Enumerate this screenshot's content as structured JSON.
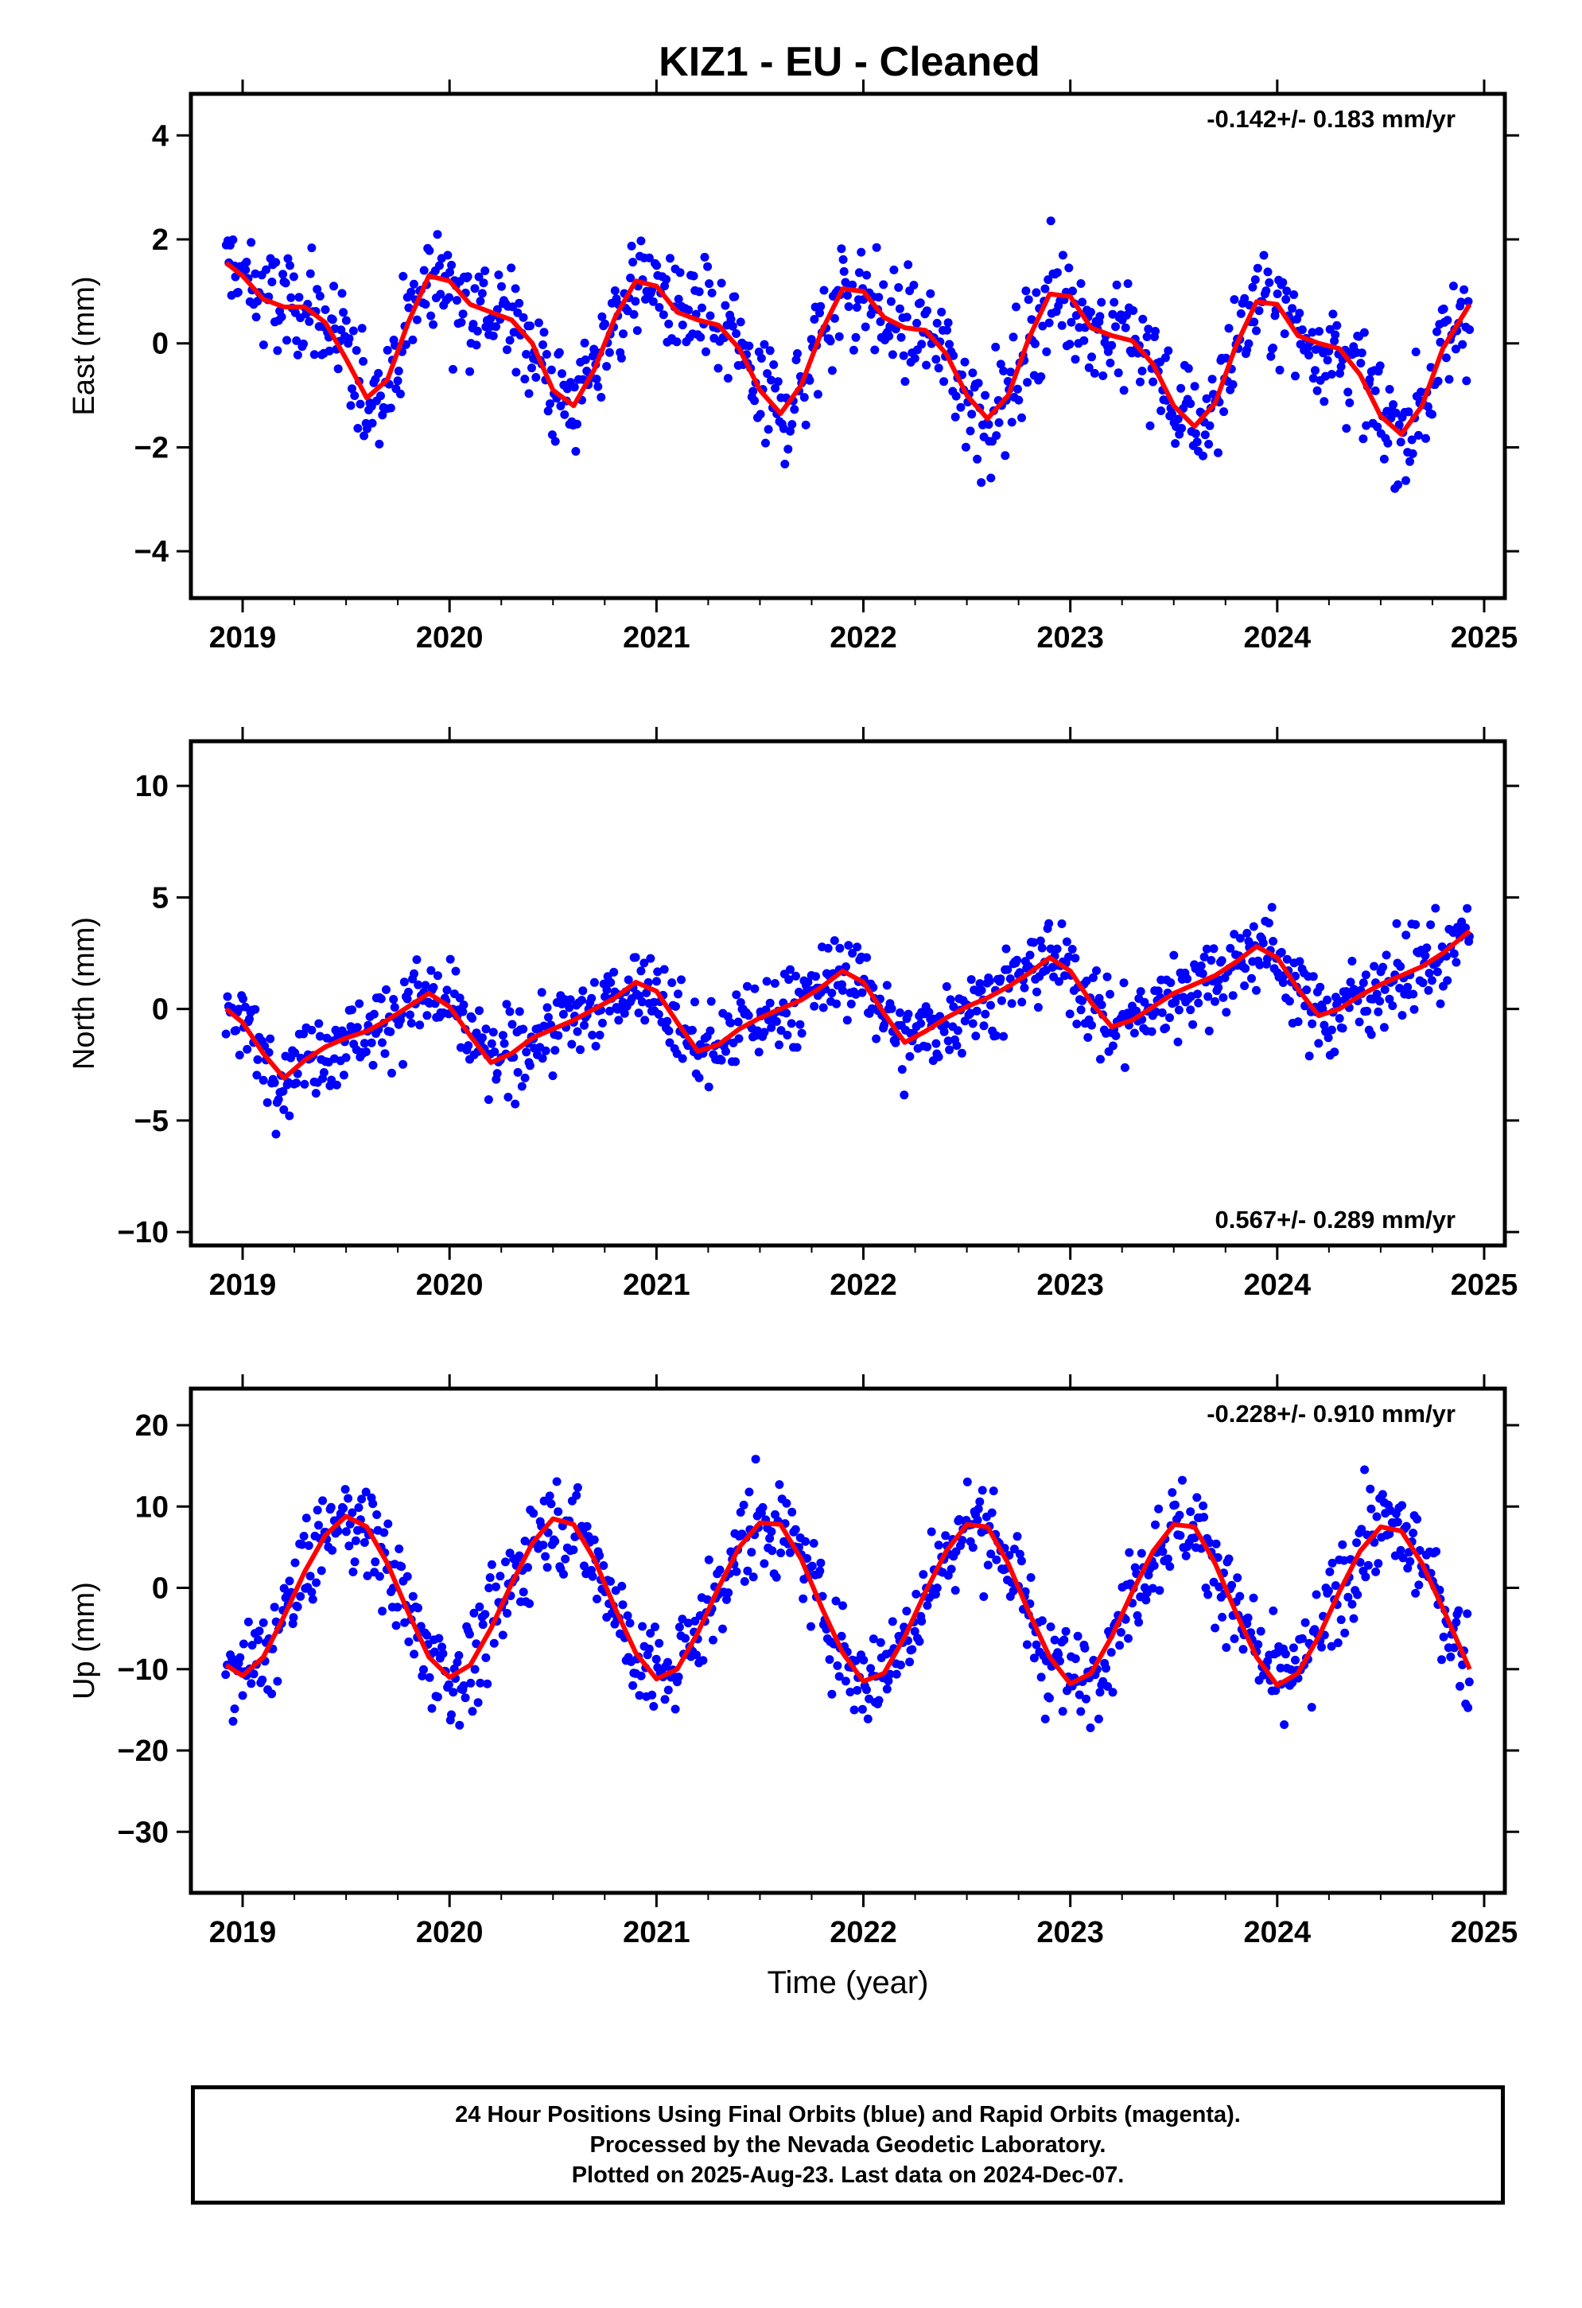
{
  "title": "KIZ1  - EU - Cleaned",
  "colors": {
    "points": "#0000ff",
    "fit": "#ff0000",
    "frame": "#000000"
  },
  "chart_data": [
    {
      "type": "scatter",
      "name": "east",
      "ylabel": "East (mm)",
      "xlabel": "",
      "xlim": [
        2018.75,
        2025.1
      ],
      "ylim": [
        -4.9,
        4.8
      ],
      "xticks": [
        2019,
        2020,
        2021,
        2022,
        2023,
        2024,
        2025
      ],
      "yticks": [
        -4,
        -2,
        0,
        2,
        4
      ],
      "rate_label": "-0.142+/- 0.183 mm/yr",
      "rate_position": "top-right",
      "fit": {
        "x": [
          2018.92,
          2019.0,
          2019.1,
          2019.2,
          2019.3,
          2019.4,
          2019.5,
          2019.6,
          2019.7,
          2019.8,
          2019.9,
          2020.0,
          2020.1,
          2020.2,
          2020.3,
          2020.4,
          2020.5,
          2020.6,
          2020.7,
          2020.8,
          2020.9,
          2021.0,
          2021.1,
          2021.2,
          2021.3,
          2021.4,
          2021.5,
          2021.6,
          2021.7,
          2021.8,
          2021.9,
          2022.0,
          2022.1,
          2022.2,
          2022.3,
          2022.4,
          2022.5,
          2022.6,
          2022.7,
          2022.8,
          2022.9,
          2023.0,
          2023.1,
          2023.2,
          2023.3,
          2023.4,
          2023.5,
          2023.6,
          2023.7,
          2023.8,
          2023.9,
          2024.0,
          2024.1,
          2024.2,
          2024.3,
          2024.4,
          2024.5,
          2024.6,
          2024.7,
          2024.8,
          2024.93
        ],
        "y": [
          1.55,
          1.3,
          0.85,
          0.7,
          0.7,
          0.4,
          -0.3,
          -1.05,
          -0.7,
          0.4,
          1.3,
          1.2,
          0.75,
          0.6,
          0.45,
          0.0,
          -0.9,
          -1.2,
          -0.5,
          0.5,
          1.2,
          1.1,
          0.6,
          0.45,
          0.35,
          -0.1,
          -0.9,
          -1.35,
          -0.8,
          0.25,
          1.05,
          1.0,
          0.5,
          0.3,
          0.25,
          -0.2,
          -1.0,
          -1.45,
          -1.0,
          0.1,
          0.95,
          0.9,
          0.3,
          0.15,
          0.05,
          -0.4,
          -1.2,
          -1.6,
          -1.15,
          -0.05,
          0.8,
          0.75,
          0.15,
          0.0,
          -0.1,
          -0.6,
          -1.4,
          -1.75,
          -1.2,
          -0.1,
          0.75
        ]
      }
    },
    {
      "type": "scatter",
      "name": "north",
      "ylabel": "North (mm)",
      "xlabel": "",
      "xlim": [
        2018.75,
        2025.1
      ],
      "ylim": [
        -10.6,
        12.0
      ],
      "xticks": [
        2019,
        2020,
        2021,
        2022,
        2023,
        2024,
        2025
      ],
      "yticks": [
        -10,
        -5,
        0,
        5,
        10
      ],
      "rate_label": "0.567+/- 0.289 mm/yr",
      "rate_position": "bottom-right",
      "fit": {
        "x": [
          2018.92,
          2019.0,
          2019.1,
          2019.2,
          2019.3,
          2019.4,
          2019.5,
          2019.6,
          2019.7,
          2019.8,
          2019.9,
          2020.0,
          2020.1,
          2020.2,
          2020.3,
          2020.4,
          2020.5,
          2020.6,
          2020.7,
          2020.8,
          2020.9,
          2021.0,
          2021.1,
          2021.2,
          2021.3,
          2021.4,
          2021.5,
          2021.6,
          2021.7,
          2021.8,
          2021.9,
          2022.0,
          2022.1,
          2022.2,
          2022.3,
          2022.4,
          2022.5,
          2022.6,
          2022.7,
          2022.8,
          2022.9,
          2023.0,
          2023.1,
          2023.2,
          2023.3,
          2023.4,
          2023.5,
          2023.6,
          2023.7,
          2023.8,
          2023.9,
          2024.0,
          2024.1,
          2024.2,
          2024.3,
          2024.4,
          2024.5,
          2024.6,
          2024.7,
          2024.8,
          2024.93
        ],
        "y": [
          0.0,
          -0.6,
          -2.0,
          -3.1,
          -2.3,
          -1.7,
          -1.3,
          -1.0,
          -0.5,
          0.1,
          0.7,
          0.1,
          -1.2,
          -2.4,
          -2.0,
          -1.3,
          -0.9,
          -0.5,
          0.0,
          0.5,
          1.2,
          0.8,
          -0.6,
          -1.9,
          -1.6,
          -0.9,
          -0.4,
          0.0,
          0.4,
          1.0,
          1.7,
          1.2,
          -0.2,
          -1.5,
          -1.0,
          -0.4,
          0.1,
          0.5,
          1.0,
          1.6,
          2.3,
          1.7,
          0.3,
          -0.8,
          -0.5,
          0.1,
          0.7,
          1.1,
          1.5,
          2.1,
          2.8,
          2.3,
          0.9,
          -0.3,
          0.0,
          0.6,
          1.1,
          1.5,
          1.9,
          2.5,
          3.5
        ]
      }
    },
    {
      "type": "scatter",
      "name": "up",
      "ylabel": "Up (mm)",
      "xlabel": "Time (year)",
      "xlim": [
        2018.75,
        2025.1
      ],
      "ylim": [
        -37.5,
        24.5
      ],
      "xticks": [
        2019,
        2020,
        2021,
        2022,
        2023,
        2024,
        2025
      ],
      "yticks": [
        -30,
        -20,
        -10,
        0,
        10,
        20
      ],
      "rate_label": "-0.228+/- 0.910 mm/yr",
      "rate_position": "top-right",
      "fit": {
        "x": [
          2018.92,
          2019.0,
          2019.1,
          2019.2,
          2019.3,
          2019.4,
          2019.5,
          2019.6,
          2019.7,
          2019.8,
          2019.9,
          2020.0,
          2020.1,
          2020.2,
          2020.3,
          2020.4,
          2020.5,
          2020.6,
          2020.7,
          2020.8,
          2020.9,
          2021.0,
          2021.1,
          2021.2,
          2021.3,
          2021.4,
          2021.5,
          2021.6,
          2021.7,
          2021.8,
          2021.9,
          2022.0,
          2022.1,
          2022.2,
          2022.3,
          2022.4,
          2022.5,
          2022.6,
          2022.7,
          2022.8,
          2022.9,
          2023.0,
          2023.1,
          2023.2,
          2023.3,
          2023.4,
          2023.5,
          2023.6,
          2023.7,
          2023.8,
          2023.9,
          2024.0,
          2024.1,
          2024.2,
          2024.3,
          2024.4,
          2024.5,
          2024.6,
          2024.7,
          2024.8,
          2024.93
        ],
        "y": [
          -9.5,
          -10.8,
          -8.5,
          -3.5,
          2.0,
          6.5,
          8.8,
          7.5,
          3.0,
          -3.0,
          -8.5,
          -11.0,
          -9.5,
          -5.0,
          0.5,
          5.5,
          8.5,
          7.8,
          3.5,
          -2.5,
          -8.0,
          -11.2,
          -10.0,
          -5.5,
          0.0,
          5.0,
          8.0,
          7.8,
          3.5,
          -2.5,
          -8.0,
          -11.5,
          -10.5,
          -6.0,
          -0.5,
          4.5,
          7.8,
          7.5,
          3.0,
          -3.0,
          -8.5,
          -11.8,
          -10.5,
          -6.0,
          -0.5,
          4.5,
          7.8,
          7.5,
          3.0,
          -3.0,
          -8.5,
          -12.0,
          -10.5,
          -6.0,
          -0.5,
          4.5,
          7.5,
          7.0,
          3.0,
          -2.5,
          -10.0
        ]
      }
    }
  ],
  "footer": {
    "line1": "24 Hour Positions Using Final Orbits (blue) and Rapid Orbits (magenta).",
    "line2": "Processed by the Nevada Geodetic Laboratory.",
    "line3": "Plotted on 2025-Aug-23. Last data on 2024-Dec-07."
  }
}
